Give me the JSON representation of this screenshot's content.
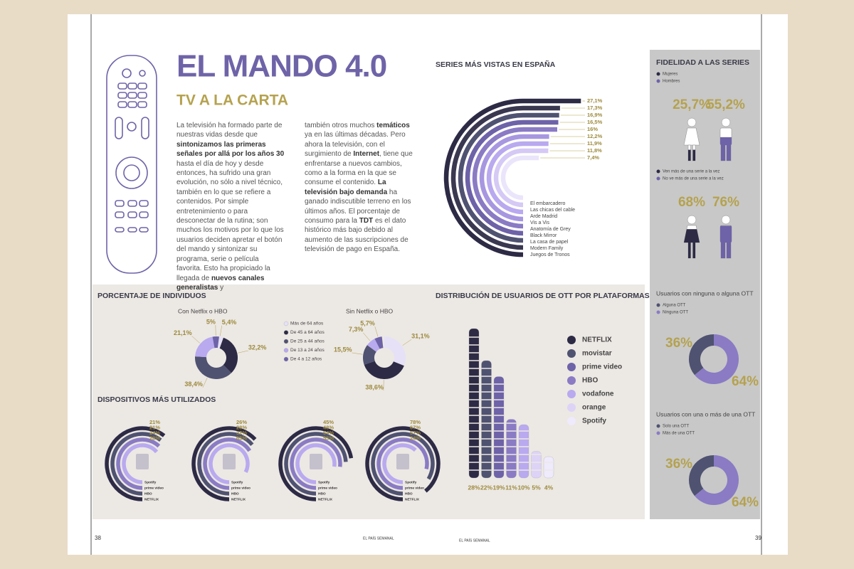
{
  "header": {
    "title": "EL MANDO 4.0",
    "subtitle": "TV A LA CARTA"
  },
  "body": {
    "columns": [
      [
        {
          "text": "La televisión ha formado parte de nuestras vidas desde que ",
          "bold": false
        },
        {
          "text": "sintonizamos las primeras señales por allá por los años 30",
          "bold": true
        },
        {
          "text": " hasta el día de hoy y desde entonces, ha sufrido una gran evolución, no sólo a nivel técnico, también en lo que se refiere a contenidos. Por simple entretenimiento o para desconectar de la rutina; son muchos los motivos por lo que los usuarios deciden apretar el botón del mando y sintonizar su programa, serie o película favorita. Esto ha propiciado la llegada de ",
          "bold": false
        },
        {
          "text": "nuevos canales generalistas",
          "bold": true
        },
        {
          "text": " y",
          "bold": false
        }
      ],
      [
        {
          "text": "también otros muchos ",
          "bold": false
        },
        {
          "text": "temáticos",
          "bold": true
        },
        {
          "text": " ya en las últimas décadas. Pero ahora la televisión, con el surgimiento de ",
          "bold": false
        },
        {
          "text": "Internet",
          "bold": true
        },
        {
          "text": ", tiene que enfrentarse a nuevos cambios, como a la forma en la que se consume el contenido. ",
          "bold": false
        },
        {
          "text": "La televisión bajo demanda",
          "bold": true
        },
        {
          "text": " ha ganado indiscutible terreno en los últimos años. El porcentaje de consumo para la ",
          "bold": false
        },
        {
          "text": "TDT",
          "bold": true
        },
        {
          "text": " es el dato histórico más bajo debido al aumento de las suscripciones de televisión de pago en España.",
          "bold": false
        }
      ]
    ]
  },
  "series_chart": {
    "title": "SERIES MÁS VISTAS EN ESPAÑA",
    "items": [
      {
        "name": "Juegos de Tronos",
        "color": "#2d2a45",
        "value": {
          "value": 27.1,
          "label": "27,1%"
        }
      },
      {
        "name": "Modern Family",
        "color": "#3a3850",
        "value": {
          "value": 17.3,
          "label": "17,3%"
        }
      },
      {
        "name": "La casa de papel",
        "color": "#4f5270",
        "value": {
          "value": 16.9,
          "label": "16,9%"
        }
      },
      {
        "name": "Black Mirror",
        "color": "#6e62a8",
        "value": {
          "value": 16.5,
          "label": "16,5%"
        }
      },
      {
        "name": "Anatomía de Grey",
        "color": "#8a7bc4",
        "value": {
          "value": 16,
          "label": "16%"
        }
      },
      {
        "name": "Vis a Vis",
        "color": "#a797e0",
        "value": {
          "value": 12.2,
          "label": "12,2%"
        }
      },
      {
        "name": "Arde Madrid",
        "color": "#b9a9ef",
        "value": {
          "value": 11.9,
          "label": "11,9%"
        }
      },
      {
        "name": "Las chicas del cable",
        "color": "#d5c9f5",
        "value": {
          "value": 11.8,
          "label": "11,8%"
        }
      },
      {
        "name": "El embarcadero",
        "color": "#ebe5fb",
        "value": {
          "value": 7.4,
          "label": "7,4%"
        }
      }
    ]
  },
  "fidelity": {
    "title": "FIDELIDAD A LAS SERIES",
    "groups": [
      {
        "items": [
          {
            "name": "Mujeres",
            "color": "#2d2a45",
            "value": {
              "value": 25.7,
              "label": "25,7%"
            }
          },
          {
            "name": "Hombres",
            "color": "#6e62a8",
            "value": {
              "value": 55.2,
              "label": "55,2%"
            }
          }
        ]
      },
      {
        "items": [
          {
            "name": "Ven más de una serie a la vez",
            "color": "#2d2a45",
            "value": {
              "value": 68,
              "label": "68%"
            }
          },
          {
            "name": "No ve más de una serie a la vez",
            "color": "#6e62a8",
            "value": {
              "value": 76,
              "label": "76%"
            }
          }
        ]
      }
    ]
  },
  "individuals": {
    "title": "PORCENTAJE DE INDIVIDUOS",
    "legend": [
      {
        "name": "Más de 64 años",
        "color": "#e7e1f7"
      },
      {
        "name": "De 45 a 64 años",
        "color": "#2d2a45"
      },
      {
        "name": "De 25 a 44 años",
        "color": "#4f5270"
      },
      {
        "name": "De 13 a 24 años",
        "color": "#b9a9ef"
      },
      {
        "name": "De 4 a 12 años",
        "color": "#6e62a8"
      }
    ],
    "charts": [
      {
        "title": "Con Netflix o HBO",
        "values": [
          {
            "value": 5.4,
            "label": "5,4%"
          },
          {
            "value": 32.2,
            "label": "32,2%"
          },
          {
            "value": 38.4,
            "label": "38,4%"
          },
          {
            "value": 21.1,
            "label": "21,1%"
          },
          {
            "value": 5,
            "label": "5%"
          }
        ]
      },
      {
        "title": "Sin Netflix o HBO",
        "values": [
          {
            "value": 31.1,
            "label": "31,1%"
          },
          {
            "value": 38.6,
            "label": "38,6%"
          },
          {
            "value": 15.5,
            "label": "15,5%"
          },
          {
            "value": 7.3,
            "label": "7,3%"
          },
          {
            "value": 5.7,
            "label": "5,7%"
          }
        ]
      }
    ]
  },
  "devices": {
    "title": "DISPOSITIVOS MÁS UTILIZADOS",
    "platforms": [
      {
        "name": "NETFLIX",
        "color": "#2d2a45"
      },
      {
        "name": "HBO",
        "color": "#4f5270"
      },
      {
        "name": "prime video",
        "color": "#8a7bc4"
      },
      {
        "name": "Spotify",
        "color": "#b9a9ef"
      }
    ],
    "groups": [
      [
        {
          "value": 21,
          "label": "21%"
        },
        {
          "value": 21,
          "label": "21%"
        },
        {
          "value": 24,
          "label": "24%"
        },
        {
          "value": 28,
          "label": "28%"
        }
      ],
      [
        {
          "value": 26,
          "label": "26%"
        },
        {
          "value": 28,
          "label": "28%"
        },
        {
          "value": 32,
          "label": "32%"
        },
        {
          "value": 65,
          "label": "65%"
        }
      ],
      [
        {
          "value": 45,
          "label": "45%"
        },
        {
          "value": 48,
          "label": "48%"
        },
        {
          "value": 54,
          "label": "54%"
        },
        {
          "value": 55,
          "label": "55%"
        }
      ],
      [
        {
          "value": 78,
          "label": "78%"
        },
        {
          "value": 67,
          "label": "67%"
        },
        {
          "value": 57,
          "label": "57%"
        },
        {
          "value": 24,
          "label": "24%"
        }
      ]
    ]
  },
  "ott": {
    "title": "DISTRIBUCIÓN DE USUARIOS DE OTT POR PLATAFORMAS",
    "platforms": [
      {
        "name": "NETFLIX",
        "color": "#2d2a45",
        "value": {
          "value": 28,
          "label": "28%"
        }
      },
      {
        "name": "movistar",
        "color": "#4f5270",
        "value": {
          "value": 22,
          "label": "22%"
        }
      },
      {
        "name": "prime video",
        "color": "#6e62a8",
        "value": {
          "value": 19,
          "label": "19%"
        }
      },
      {
        "name": "HBO",
        "color": "#8a7bc4",
        "value": {
          "value": 11,
          "label": "11%"
        }
      },
      {
        "name": "vodafone",
        "color": "#b9a9ef",
        "value": {
          "value": 10,
          "label": "10%"
        }
      },
      {
        "name": "orange",
        "color": "#ddd3f7",
        "value": {
          "value": 5,
          "label": "5%"
        }
      },
      {
        "name": "Spotify",
        "color": "#efeafc",
        "value": {
          "value": 4,
          "label": "4%"
        }
      }
    ]
  },
  "ott_users": [
    {
      "title": "Usuarios con ninguna o alguna OTT",
      "items": [
        {
          "name": "Alguna OTT",
          "color": "#4f5270",
          "value": {
            "value": 36,
            "label": "36%"
          }
        },
        {
          "name": "Ninguna OTT",
          "color": "#8a7bc4",
          "value": {
            "value": 64,
            "label": "64%"
          }
        }
      ]
    },
    {
      "title": "Usuarios con una o más de una OTT",
      "items": [
        {
          "name": "Solo una OTT",
          "color": "#4f5270",
          "value": {
            "value": 36,
            "label": "36%"
          }
        },
        {
          "name": "Más de una OTT",
          "color": "#8a7bc4",
          "value": {
            "value": 64,
            "label": "64%"
          }
        }
      ]
    }
  ],
  "footer": {
    "left_page": "38",
    "right_page": "39",
    "publication": "EL PAÍS SEMANAL"
  }
}
